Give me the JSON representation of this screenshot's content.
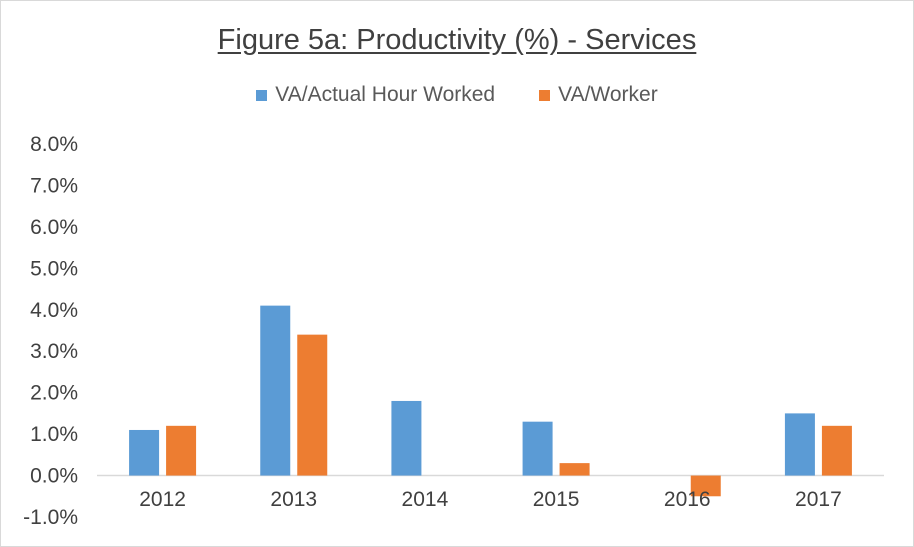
{
  "chart_data": {
    "type": "bar",
    "title": "Figure 5a: Productivity (%) - Services",
    "categories": [
      "2012",
      "2013",
      "2014",
      "2015",
      "2016",
      "2017"
    ],
    "series": [
      {
        "name": "VA/Actual Hour Worked",
        "color": "#5b9bd5",
        "values": [
          1.1,
          4.1,
          1.8,
          1.3,
          null,
          1.5
        ]
      },
      {
        "name": "VA/Worker",
        "color": "#ed7d31",
        "values": [
          1.2,
          3.4,
          null,
          0.3,
          -0.5,
          1.2
        ]
      }
    ],
    "yticks": [
      "8.0%",
      "7.0%",
      "6.0%",
      "5.0%",
      "4.0%",
      "3.0%",
      "2.0%",
      "1.0%",
      "0.0%",
      "-1.0%"
    ],
    "ylim": [
      -1,
      8
    ],
    "grid": false,
    "legend_position": "top"
  }
}
